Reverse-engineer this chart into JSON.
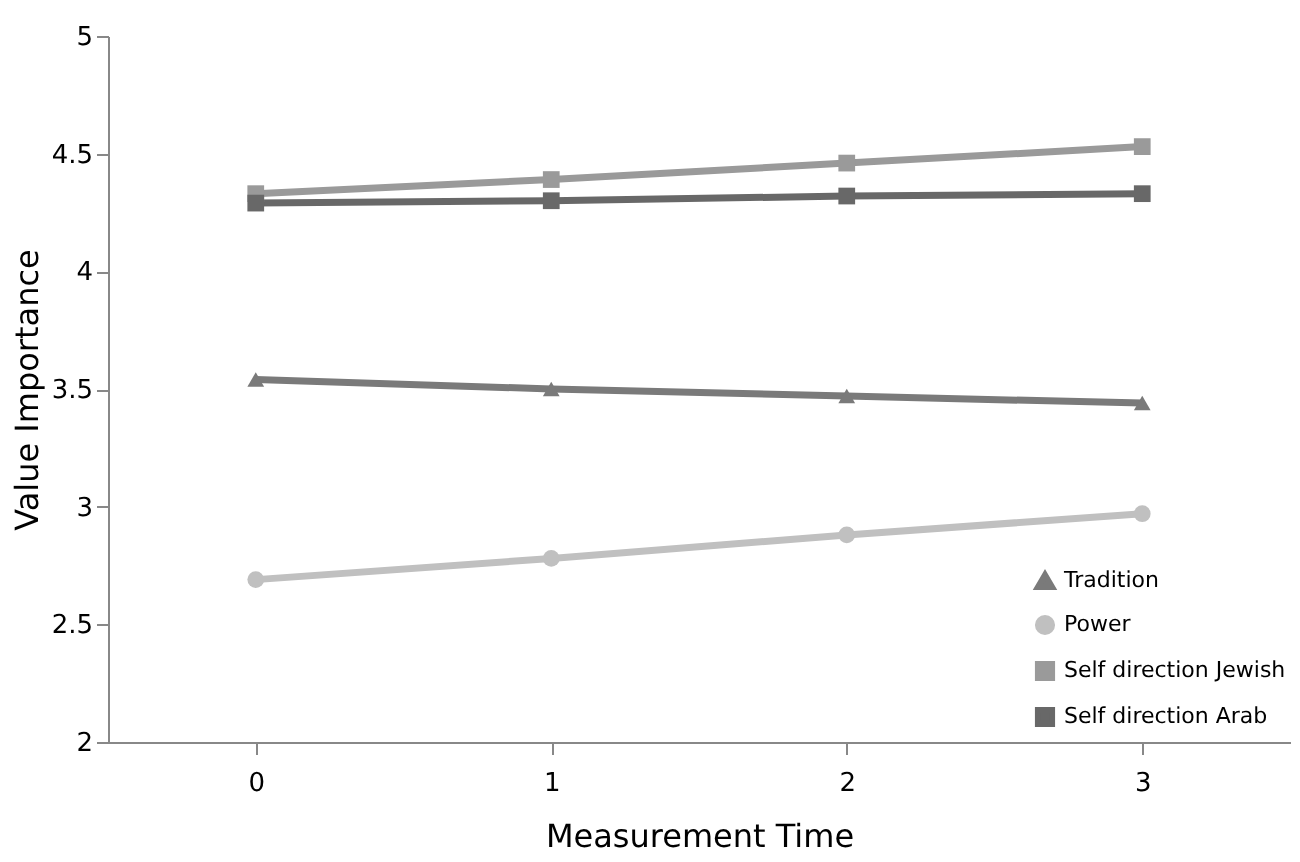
{
  "chart_data": {
    "type": "line",
    "xlabel": "Measurement Time",
    "ylabel": "Value Importance",
    "categories": [
      "0",
      "1",
      "2",
      "3"
    ],
    "ylim": [
      2,
      5
    ],
    "yticks": [
      2,
      2.5,
      3,
      3.5,
      4,
      4.5,
      5
    ],
    "grid": false,
    "legend": "bottom right",
    "line_style": "solid",
    "series": [
      {
        "name": "Tradition",
        "color": "#7a7a7a",
        "marker": "triangle",
        "values": [
          3.54,
          3.5,
          3.47,
          3.44
        ]
      },
      {
        "name": "Power",
        "color": "#c0c0c0",
        "marker": "circle",
        "values": [
          2.69,
          2.78,
          2.88,
          2.97
        ]
      },
      {
        "name": "Self direction Jewish",
        "color": "#9a9a9a",
        "marker": "square",
        "values": [
          4.33,
          4.39,
          4.46,
          4.53
        ]
      },
      {
        "name": "Self direction Arab",
        "color": "#686868",
        "marker": "square",
        "values": [
          4.29,
          4.3,
          4.32,
          4.33
        ]
      }
    ]
  }
}
